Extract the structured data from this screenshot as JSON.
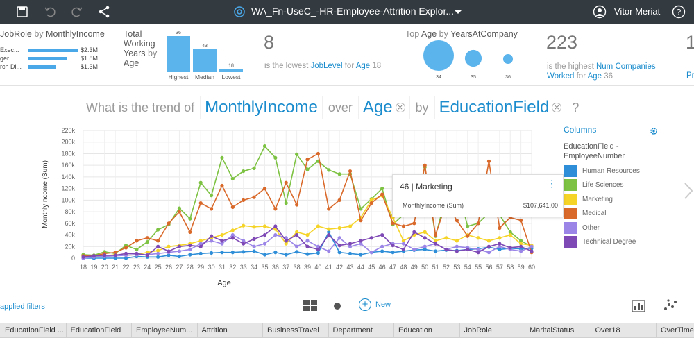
{
  "app": {
    "title": "WA_Fn-UseC_-HR-Employee-Attrition Explor...",
    "user": "Vitor Meriat",
    "icons": [
      "save-icon",
      "undo-icon",
      "redo-icon",
      "share-icon",
      "watson-icon",
      "dropdown-icon",
      "user-icon",
      "help-icon"
    ]
  },
  "cards": {
    "jobrole": {
      "title_a": "JobRole",
      "title_b": " by ",
      "title_c": "MonthlyIncome",
      "rows": [
        {
          "label": "Exec...",
          "value": "$2.3M",
          "fraction": 1.0
        },
        {
          "label": "ger",
          "value": "$1.8M",
          "fraction": 0.77
        },
        {
          "label": "rch Di...",
          "value": "$1.3M",
          "fraction": 0.55
        }
      ]
    },
    "working_years": {
      "title_l1": "Total",
      "title_l2": "Working",
      "title_l3": "Years",
      "title_l3b": " by",
      "title_l4": "Age",
      "bars": [
        {
          "label": "Highest",
          "value": "36",
          "num": 36
        },
        {
          "label": "Median",
          "value": "43",
          "num": 23
        },
        {
          "label": "Lowest",
          "value": "18",
          "num": 3
        }
      ]
    },
    "lowest_joblevel": {
      "big": "8",
      "pre": "is the lowest ",
      "field": "JobLevel",
      "mid": " for ",
      "f2": "Age",
      "val": " 18"
    },
    "top_age": {
      "title_a": "Top ",
      "title_b": "Age",
      "title_c": " by ",
      "title_d": "YearsAtCompany",
      "bubbles": [
        {
          "label": "34",
          "size": 1.0
        },
        {
          "label": "35",
          "size": 0.55
        },
        {
          "label": "36",
          "size": 0.32
        }
      ]
    },
    "highest_companies": {
      "big": "223",
      "pre": "is the highest ",
      "field": "Num Companies",
      "field2": "Worked",
      "mid": " for ",
      "f2": "Age",
      "val": " 36"
    },
    "partial": {
      "big": "1",
      "sub": "Pr"
    }
  },
  "question": {
    "p1": "What is the trend of",
    "t1": "MonthlyIncome",
    "p2": "over",
    "t2": "Age",
    "p3": "by",
    "t3": "EducationField",
    "p4": "?",
    "remove_glyph": "×"
  },
  "legend": {
    "header": "Columns",
    "title_l1": "EducationField -",
    "title_l2": "EmployeeNumber",
    "items": [
      {
        "label": "Human Resources",
        "color": "#2e8ed8"
      },
      {
        "label": "Life Sciences",
        "color": "#7dc242"
      },
      {
        "label": "Marketing",
        "color": "#f5d327"
      },
      {
        "label": "Medical",
        "color": "#d9692a"
      },
      {
        "label": "Other",
        "color": "#9b86e8"
      },
      {
        "label": "Technical Degree",
        "color": "#7e48b5"
      }
    ]
  },
  "tooltip": {
    "title": "46 | Marketing",
    "key": "MonthlyIncome (Sum)",
    "value": "$107,641.00",
    "more": "⋮"
  },
  "chart_data": {
    "type": "line",
    "xlabel": "Age",
    "ylabel": "MonthlyIncome (Sum)",
    "ylim": [
      0,
      220000
    ],
    "yticks": [
      "0",
      "20k",
      "40k",
      "60k",
      "80k",
      "100k",
      "120k",
      "140k",
      "160k",
      "180k",
      "200k",
      "220k"
    ],
    "x": [
      18,
      19,
      20,
      21,
      22,
      23,
      24,
      25,
      26,
      27,
      28,
      29,
      30,
      31,
      32,
      33,
      34,
      35,
      36,
      37,
      38,
      39,
      40,
      41,
      42,
      43,
      44,
      45,
      46,
      47,
      48,
      49,
      50,
      51,
      52,
      53,
      54,
      55,
      56,
      57,
      58,
      59,
      60
    ],
    "grid": true,
    "series": [
      {
        "name": "Human Resources",
        "color": "#2e8ed8",
        "values": [
          0,
          0,
          0,
          0,
          0,
          3000,
          2000,
          2000,
          5000,
          3000,
          6000,
          8000,
          9000,
          10000,
          10000,
          11000,
          12000,
          6000,
          10000,
          6000,
          11000,
          7000,
          9000,
          45000,
          10000,
          8000,
          6000,
          10000,
          12000,
          10000,
          12000,
          14000,
          15000,
          12000,
          14000,
          13000,
          15000,
          16000,
          19000,
          15000,
          17000,
          16000,
          17000
        ]
      },
      {
        "name": "Life Sciences",
        "color": "#7dc242",
        "values": [
          6000,
          5000,
          11000,
          8000,
          22000,
          15000,
          28000,
          49000,
          58000,
          86000,
          68000,
          130000,
          108000,
          173000,
          137000,
          150000,
          155000,
          193000,
          173000,
          95000,
          179000,
          153000,
          167000,
          152000,
          145000,
          145000,
          85000,
          102000,
          120000,
          58000,
          75000,
          90000,
          157000,
          38000,
          108000,
          128000,
          55000,
          60000,
          78000,
          75000,
          45000,
          30000,
          20000
        ]
      },
      {
        "name": "Marketing",
        "color": "#f5d327",
        "values": [
          2000,
          3000,
          4000,
          6000,
          5000,
          6000,
          10000,
          13000,
          20000,
          22000,
          25000,
          30000,
          35000,
          40000,
          48000,
          56000,
          54000,
          55000,
          50000,
          25000,
          45000,
          40000,
          55000,
          50000,
          52000,
          55000,
          70000,
          100000,
          107641,
          70000,
          30000,
          40000,
          45000,
          30000,
          35000,
          30000,
          40000,
          35000,
          30000,
          35000,
          40000,
          25000,
          22000
        ]
      },
      {
        "name": "Medical",
        "color": "#d9692a",
        "values": [
          4000,
          4000,
          8000,
          10000,
          18000,
          30000,
          35000,
          30000,
          60000,
          80000,
          45000,
          95000,
          85000,
          125000,
          88000,
          100000,
          105000,
          120000,
          85000,
          130000,
          92000,
          170000,
          180000,
          85000,
          100000,
          150000,
          65000,
          95000,
          110000,
          60000,
          55000,
          60000,
          160000,
          40000,
          95000,
          65000,
          38000,
          60000,
          167000,
          52000,
          70000,
          65000,
          10000
        ]
      },
      {
        "name": "Other",
        "color": "#9b86e8",
        "values": [
          0,
          2000,
          3000,
          4000,
          5000,
          6000,
          6000,
          8000,
          10000,
          12000,
          15000,
          25000,
          30000,
          25000,
          40000,
          30000,
          20000,
          25000,
          40000,
          35000,
          20000,
          30000,
          20000,
          12000,
          35000,
          20000,
          25000,
          10000,
          20000,
          25000,
          25000,
          15000,
          20000,
          25000,
          15000,
          20000,
          18000,
          15000,
          10000,
          20000,
          15000,
          12000,
          20000
        ]
      },
      {
        "name": "Technical Degree",
        "color": "#7e48b5",
        "values": [
          2000,
          4000,
          5000,
          5000,
          8000,
          8000,
          5000,
          20000,
          12000,
          20000,
          22000,
          20000,
          38000,
          30000,
          35000,
          25000,
          33000,
          40000,
          55000,
          30000,
          40000,
          20000,
          15000,
          40000,
          22000,
          25000,
          30000,
          35000,
          40000,
          22000,
          15000,
          45000,
          35000,
          25000,
          15000,
          12000,
          15000,
          10000,
          20000,
          25000,
          18000,
          20000,
          12000
        ]
      }
    ]
  },
  "bottom": {
    "applied_filters": "applied filters",
    "new_label": "New",
    "columns": [
      "EducationField ...",
      "EducationField",
      "EmployeeNum...",
      "Attrition",
      "BusinessTravel",
      "Department",
      "Education",
      "JobRole",
      "MaritalStatus",
      "Over18",
      "OverTime"
    ]
  }
}
